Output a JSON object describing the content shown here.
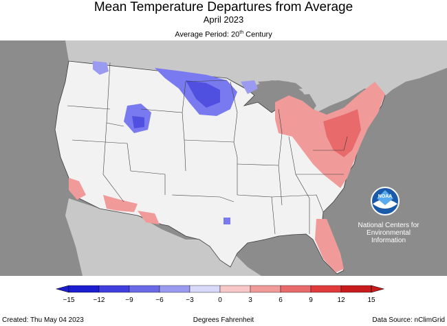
{
  "title": "Mean Temperature Departures from Average",
  "subtitle": "April 2023",
  "period": {
    "prefix": "Average Period: 20",
    "sup": "th",
    "suffix": " Century"
  },
  "noaa_logo_text": "NOAA",
  "agency": {
    "line1": "National Centers for",
    "line2": "Environmental",
    "line3": "Information"
  },
  "legend": {
    "ticks": [
      "−15",
      "−12",
      "−9",
      "−6",
      "−3",
      "0",
      "3",
      "6",
      "9",
      "12",
      "15"
    ],
    "colors": [
      "#1c1cd0",
      "#3f3fe0",
      "#6a6ae8",
      "#9a9af0",
      "#d8d8f8",
      "#f2f2f2",
      "#f8c8c8",
      "#f09a9a",
      "#e86a6a",
      "#e03a3a",
      "#c81c1c"
    ],
    "unit": "Degrees Fahrenheit"
  },
  "footer": {
    "created": "Created: Thu May 04 2023",
    "source": "Data Source: nClimGrid"
  },
  "colors": {
    "background_land": "#c8c8c8",
    "water": "#8c8c8c",
    "us_base": "#f2f2f2",
    "warm": "#f09a9a",
    "cool": "#7a7af0",
    "state_lines": "#3a3a3a"
  }
}
